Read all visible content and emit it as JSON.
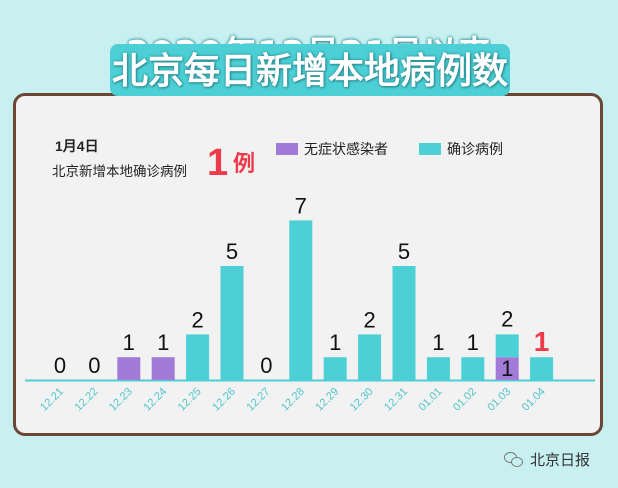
{
  "header": {
    "line1": "2020年12月21日以来",
    "line2": "北京每日新增本地病例数"
  },
  "note": {
    "date": "1月4日",
    "text": "北京新增本地确诊病例",
    "count": "1",
    "unit": "例"
  },
  "legend": {
    "asymptomatic": "无症状感染者",
    "confirmed": "确诊病例"
  },
  "footer": {
    "source": "北京日报"
  },
  "colors": {
    "confirmed": "#4dcfd6",
    "asymptomatic": "#a27ad8",
    "highlight": "#ee3b4b",
    "axis_label": "#4dc6cc"
  },
  "chart_data": {
    "type": "bar",
    "stacked": true,
    "categories": [
      "12.21",
      "12.22",
      "12.23",
      "12.24",
      "12.25",
      "12.26",
      "12.27",
      "12.28",
      "12.29",
      "12.30",
      "12.31",
      "01.01",
      "01.02",
      "01.03",
      "01.04"
    ],
    "series": [
      {
        "name": "无症状感染者",
        "values": [
          0,
          0,
          1,
          1,
          0,
          0,
          0,
          0,
          0,
          0,
          0,
          0,
          0,
          1,
          0
        ]
      },
      {
        "name": "确诊病例",
        "values": [
          0,
          0,
          0,
          0,
          2,
          5,
          0,
          7,
          1,
          2,
          5,
          1,
          1,
          1,
          1
        ]
      }
    ],
    "labels": [
      {
        "category": "12.21",
        "text": "0"
      },
      {
        "category": "12.22",
        "text": "0"
      },
      {
        "category": "12.23",
        "text": "1"
      },
      {
        "category": "12.24",
        "text": "1"
      },
      {
        "category": "12.25",
        "text": "2"
      },
      {
        "category": "12.26",
        "text": "5"
      },
      {
        "category": "12.27",
        "text": "0"
      },
      {
        "category": "12.28",
        "text": "7"
      },
      {
        "category": "12.29",
        "text": "1"
      },
      {
        "category": "12.30",
        "text": "2"
      },
      {
        "category": "12.31",
        "text": "5"
      },
      {
        "category": "01.01",
        "text": "1"
      },
      {
        "category": "01.02",
        "text": "1"
      },
      {
        "category": "01.03",
        "text": "2"
      },
      {
        "category": "01.03",
        "text": "1"
      },
      {
        "category": "01.04",
        "text": "1"
      }
    ],
    "ylim": [
      0,
      7.2
    ]
  }
}
